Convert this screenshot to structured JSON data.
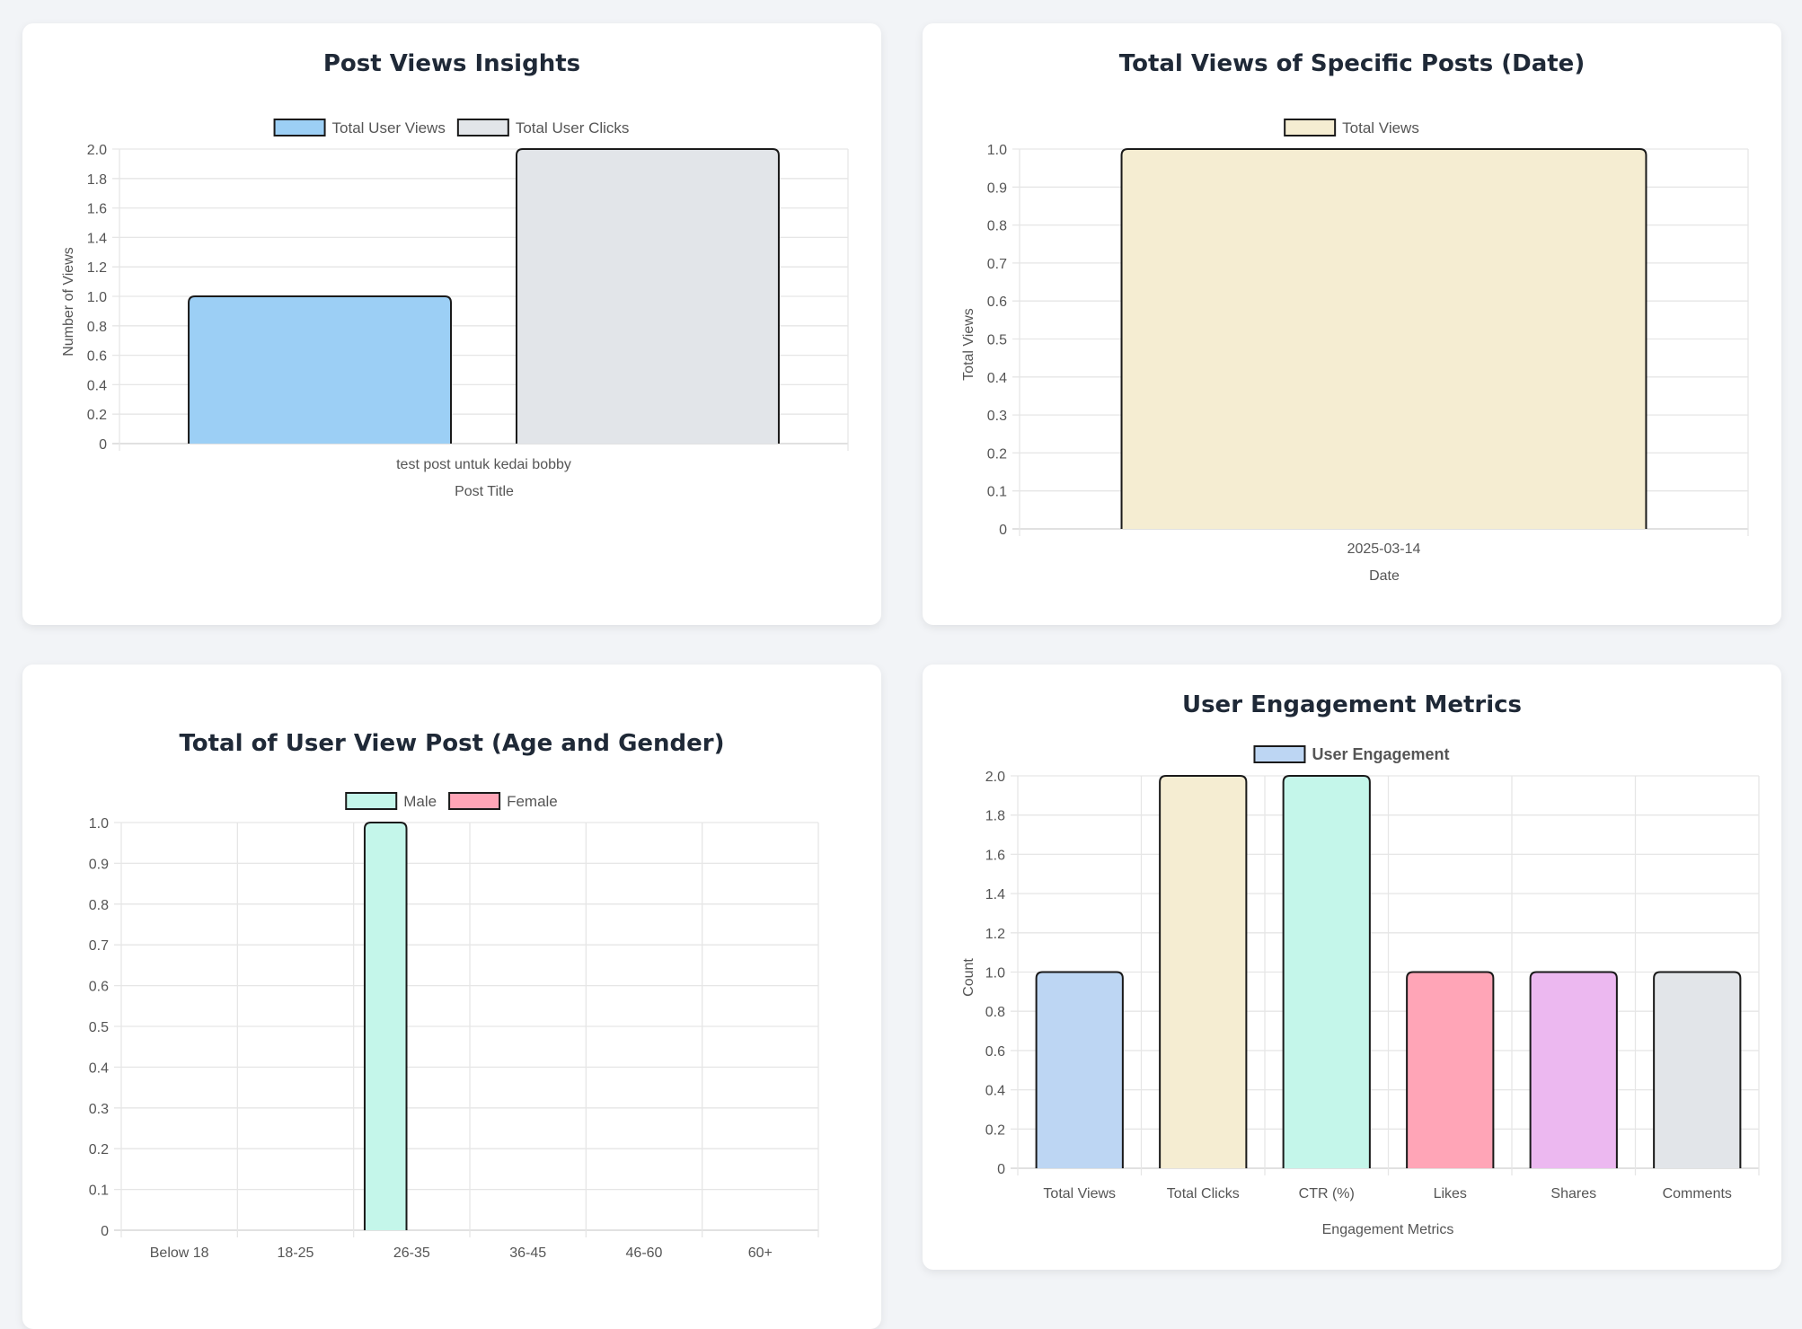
{
  "chart_data": [
    {
      "type": "bar",
      "title": "Post Views Insights",
      "categories": [
        "test post untuk kedai bobby"
      ],
      "series": [
        {
          "name": "Total User Views",
          "values": [
            1
          ],
          "color": "#9ccff5"
        },
        {
          "name": "Total User Clicks",
          "values": [
            2
          ],
          "color": "#e2e5e9"
        }
      ],
      "xlabel": "Post Title",
      "ylabel": "Number of Views",
      "ylim": [
        0,
        2.0
      ],
      "yticks": [
        "0",
        "0.2",
        "0.4",
        "0.6",
        "0.8",
        "1.0",
        "1.2",
        "1.4",
        "1.6",
        "1.8",
        "2.0"
      ],
      "grid": true,
      "legend": "top-center"
    },
    {
      "type": "bar",
      "title": "Total Views of Specific Posts (Date)",
      "categories": [
        "2025-03-14"
      ],
      "series": [
        {
          "name": "Total Views",
          "values": [
            1
          ],
          "color": "#f5edd2"
        }
      ],
      "xlabel": "Date",
      "ylabel": "Total Views",
      "ylim": [
        0,
        1.0
      ],
      "yticks": [
        "0",
        "0.1",
        "0.2",
        "0.3",
        "0.4",
        "0.5",
        "0.6",
        "0.7",
        "0.8",
        "0.9",
        "1.0"
      ],
      "grid": true,
      "legend": "top-center"
    },
    {
      "type": "bar",
      "title": "Total of User View Post (Age and Gender)",
      "categories": [
        "Below 18",
        "18-25",
        "26-35",
        "36-45",
        "46-60",
        "60+"
      ],
      "series": [
        {
          "name": "Male",
          "values": [
            0,
            0,
            1,
            0,
            0,
            0
          ],
          "color": "#c4f6ea"
        },
        {
          "name": "Female",
          "values": [
            0,
            0,
            0,
            0,
            0,
            0
          ],
          "color": "#ffa5b7"
        }
      ],
      "xlabel": "",
      "ylabel": "",
      "ylim": [
        0,
        1.0
      ],
      "yticks": [
        "0",
        "0.1",
        "0.2",
        "0.3",
        "0.4",
        "0.5",
        "0.6",
        "0.7",
        "0.8",
        "0.9",
        "1.0"
      ],
      "grid": true,
      "legend": "top-center"
    },
    {
      "type": "bar",
      "title": "User Engagement Metrics",
      "categories": [
        "Total Views",
        "Total Clicks",
        "CTR (%)",
        "Likes",
        "Shares",
        "Comments"
      ],
      "series": [
        {
          "name": "User Engagement",
          "values": [
            1,
            2,
            2,
            1,
            1,
            1
          ],
          "colors": [
            "#bdd6f3",
            "#f5edd2",
            "#c4f6ea",
            "#ffa5b7",
            "#ecb8f0",
            "#e2e5e9"
          ]
        }
      ],
      "legend_color": "#bdd6f3",
      "xlabel": "Engagement Metrics",
      "ylabel": "Count",
      "ylim": [
        0,
        2.0
      ],
      "yticks": [
        "0",
        "0.2",
        "0.4",
        "0.6",
        "0.8",
        "1.0",
        "1.2",
        "1.4",
        "1.6",
        "1.8",
        "2.0"
      ],
      "grid": true,
      "legend": "top-center"
    }
  ]
}
